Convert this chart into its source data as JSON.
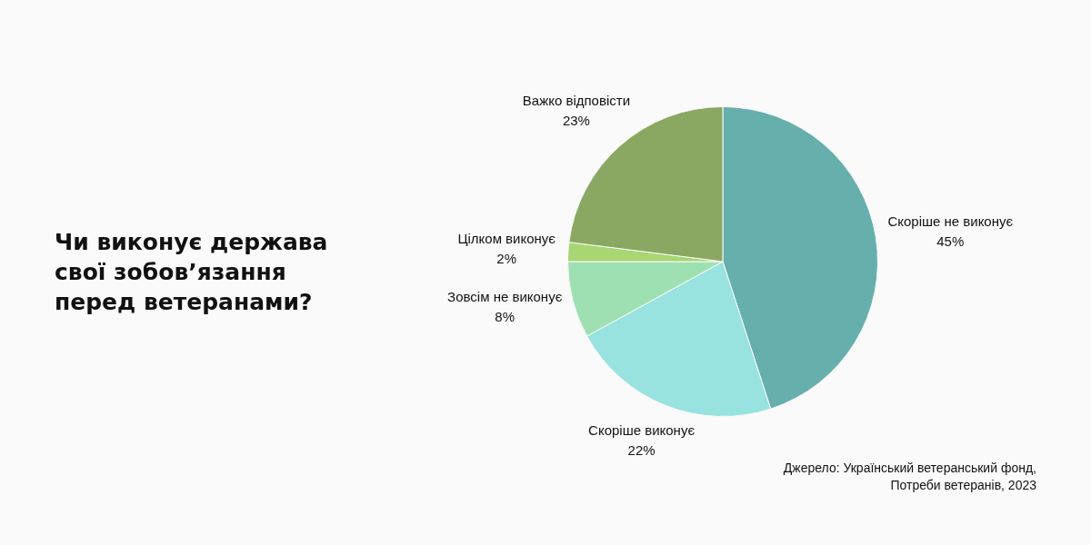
{
  "chart_data": {
    "type": "pie",
    "title": "Чи виконує держава свої зобов’язання перед ветеранами?",
    "categories": [
      "Скоріше не виконує",
      "Скоріше виконує",
      "Зовсім не виконує",
      "Цілком виконує",
      "Важко відповісти"
    ],
    "values": [
      45,
      22,
      8,
      2,
      23
    ],
    "value_labels": [
      "45%",
      "22%",
      "8%",
      "2%",
      "23%"
    ],
    "colors": [
      "#66afad",
      "#98e2df",
      "#9fe0b3",
      "#a7d672",
      "#8ba862"
    ],
    "annotations": [
      "Джерело: Український ветеранський фонд, Потреби ветеранів, 2023"
    ]
  }
}
